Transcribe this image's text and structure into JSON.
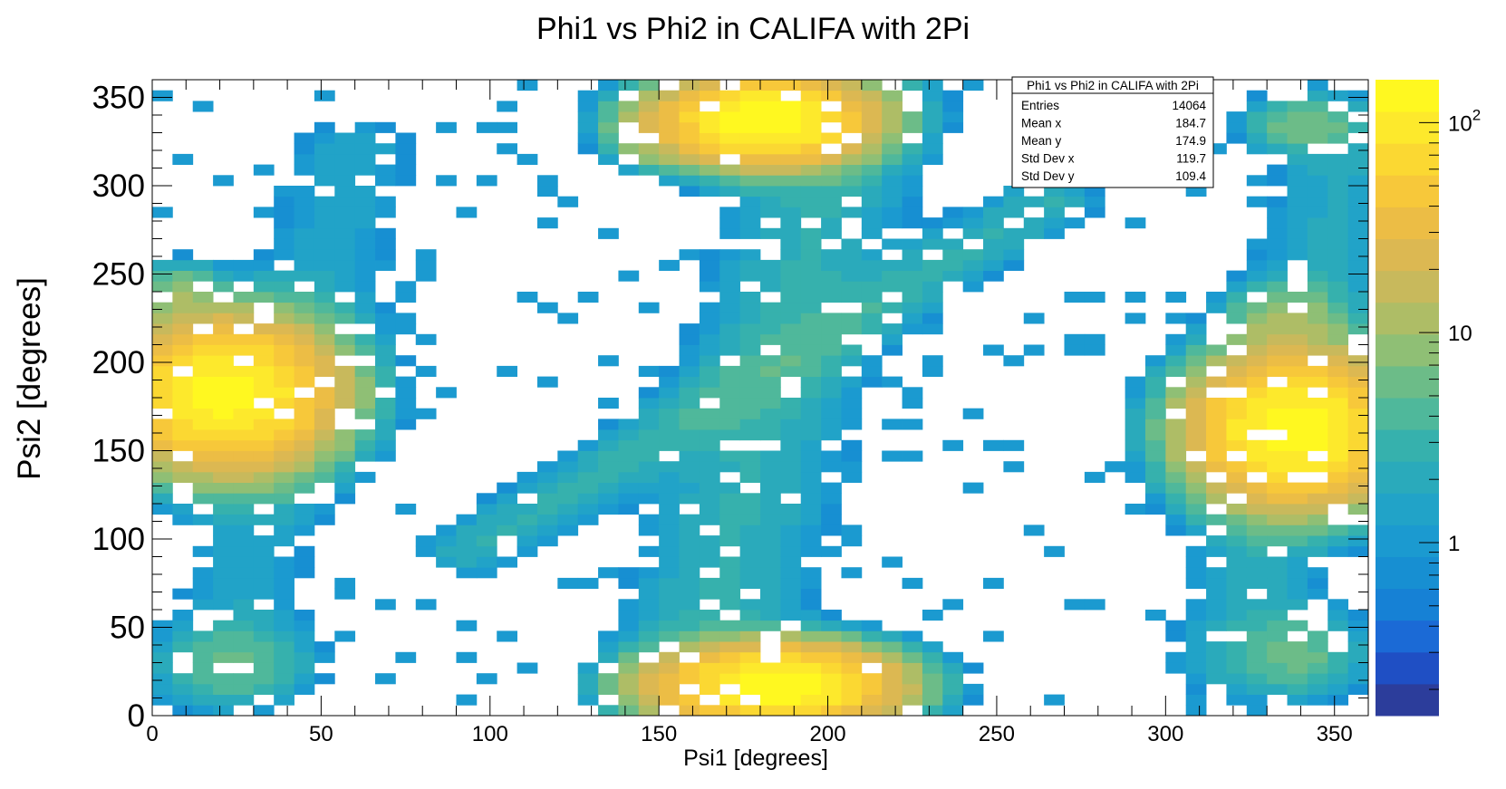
{
  "chart_data": {
    "type": "heatmap",
    "title": "Phi1 vs Phi2 in CALIFA with 2Pi",
    "xlabel": "Psi1 [degrees]",
    "ylabel": "Psi2 [degrees]",
    "xlim": [
      0,
      360
    ],
    "ylim": [
      0,
      360
    ],
    "x_ticks": [
      0,
      50,
      100,
      150,
      200,
      250,
      300,
      350
    ],
    "y_ticks": [
      0,
      50,
      100,
      150,
      200,
      250,
      300,
      350
    ],
    "bins": {
      "nx": 60,
      "ny": 60,
      "width": 6
    },
    "color_scale": {
      "type": "log",
      "min": 0.15,
      "max": 160,
      "tick_labels": [
        {
          "value": 1,
          "label": "1"
        },
        {
          "value": 10,
          "label": "10"
        },
        {
          "value": 100,
          "label": "10",
          "exponent": "2"
        }
      ],
      "palette": [
        "#2c3d9b",
        "#1f4fc4",
        "#1b6ad6",
        "#1681d5",
        "#178fd2",
        "#1b9ad0",
        "#21a3c8",
        "#2aaabb",
        "#36b1ad",
        "#4fb89b",
        "#6cbc88",
        "#8fbf75",
        "#aebd66",
        "#c8b95c",
        "#dcb852",
        "#ecbd45",
        "#f7c83a",
        "#fbd832",
        "#fde92c",
        "#fff820"
      ]
    },
    "stats_box": {
      "title": "Phi1 vs Phi2 in CALIFA with 2Pi",
      "rows": [
        {
          "label": "Entries",
          "value": "14064"
        },
        {
          "label": "Mean x",
          "value": "184.7"
        },
        {
          "label": "Mean y",
          "value": "174.9"
        },
        {
          "label": "Std Dev x",
          "value": "119.7"
        },
        {
          "label": "Std Dev y",
          "value": "109.4"
        }
      ]
    },
    "clusters": [
      {
        "x": 182,
        "y": 337,
        "peak": 150,
        "sx": 16,
        "sy": 13
      },
      {
        "x": 186,
        "y": 17,
        "peak": 150,
        "sx": 18,
        "sy": 12
      },
      {
        "x": 22,
        "y": 182,
        "peak": 130,
        "sx": 17,
        "sy": 22
      },
      {
        "x": 338,
        "y": 162,
        "peak": 140,
        "sx": 16,
        "sy": 22
      },
      {
        "x": 150,
        "y": 18,
        "peak": 8,
        "sx": 9,
        "sy": 9
      },
      {
        "x": 148,
        "y": 333,
        "peak": 12,
        "sx": 8,
        "sy": 12
      },
      {
        "x": 8,
        "y": 240,
        "peak": 6,
        "sx": 7,
        "sy": 10
      },
      {
        "x": 335,
        "y": 225,
        "peak": 8,
        "sx": 10,
        "sy": 12
      },
      {
        "x": 340,
        "y": 35,
        "peak": 5,
        "sx": 12,
        "sy": 15
      },
      {
        "x": 25,
        "y": 30,
        "peak": 4,
        "sx": 14,
        "sy": 14
      },
      {
        "x": 340,
        "y": 335,
        "peak": 6,
        "sx": 10,
        "sy": 10
      }
    ],
    "bands": [
      {
        "x0": 160,
        "y0": 10,
        "x1": 205,
        "y1": 350,
        "level": 2.5,
        "width": 18
      },
      {
        "x0": 95,
        "y0": 95,
        "x1": 265,
        "y1": 290,
        "level": 2.5,
        "width": 10
      },
      {
        "x0": 20,
        "y0": 20,
        "x1": 60,
        "y1": 320,
        "level": 1.5,
        "width": 14
      },
      {
        "x0": 320,
        "y0": 30,
        "x1": 355,
        "y1": 330,
        "level": 1.8,
        "width": 14
      }
    ],
    "noise": {
      "probability": 0.08,
      "value": 1,
      "seed": 9
    }
  }
}
